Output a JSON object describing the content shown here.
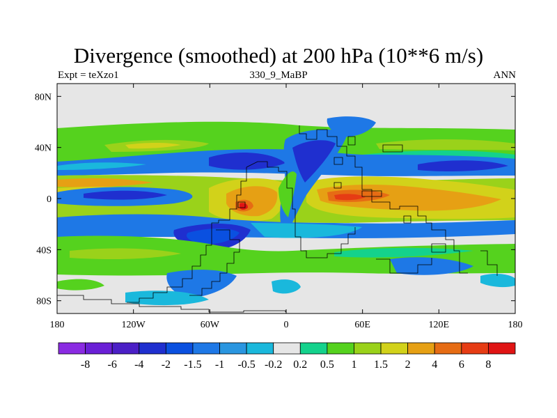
{
  "chart_data": {
    "type": "heatmap",
    "title": "Divergence (smoothed) at 200 hPa (10**6 m/s)",
    "subtitle_left": "Expt = teXzo1",
    "subtitle_center": "330_9_MaBP",
    "subtitle_right": "ANN",
    "x_ticks": [
      "180",
      "120W",
      "60W",
      "0",
      "60E",
      "120E",
      "180"
    ],
    "x_tick_values": [
      -180,
      -120,
      -60,
      0,
      60,
      120,
      180
    ],
    "y_ticks": [
      "80N",
      "40N",
      "0",
      "40S",
      "80S"
    ],
    "y_tick_values": [
      80,
      40,
      0,
      -40,
      -80
    ],
    "xlim": [
      -180,
      180
    ],
    "ylim": [
      -90,
      90
    ],
    "colorbar": {
      "levels": [
        "-8",
        "-6",
        "-4",
        "-2",
        "-1.5",
        "-1",
        "-0.5",
        "-0.2",
        "0.2",
        "0.5",
        "1",
        "1.5",
        "2",
        "4",
        "6",
        "8"
      ],
      "colors": [
        "#8a2be2",
        "#6a1fd6",
        "#4b1fc6",
        "#1f2fcf",
        "#0a50e0",
        "#1e78e6",
        "#2a96e0",
        "#1ab8dc",
        "#e6e6e6",
        "#14d28c",
        "#55d21e",
        "#9ad21a",
        "#d2d21a",
        "#e6a014",
        "#e66c14",
        "#e63c14",
        "#e01414"
      ]
    }
  }
}
